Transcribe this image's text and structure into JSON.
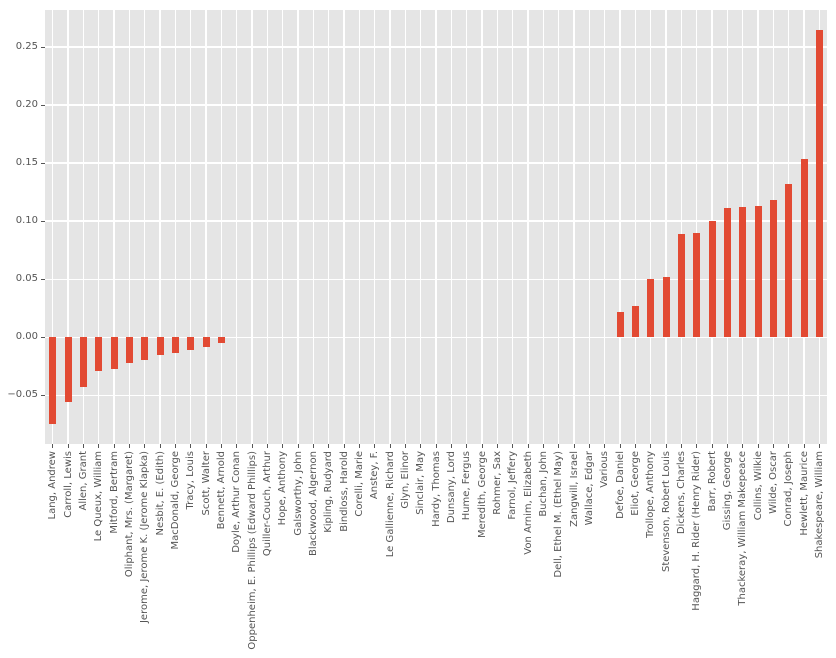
{
  "chart_data": {
    "type": "bar",
    "title": "",
    "xlabel": "",
    "ylabel": "",
    "grid": "on",
    "legend": "none",
    "ylim": [
      -0.092,
      0.282
    ],
    "ytick_values": [
      -0.05,
      0.0,
      0.05,
      0.1,
      0.15,
      0.2,
      0.25
    ],
    "ytick_labels": [
      "−0.05",
      "0.00",
      "0.05",
      "0.10",
      "0.15",
      "0.20",
      "0.25"
    ],
    "categories": [
      "Lang, Andrew",
      "Carroll, Lewis",
      "Allen, Grant",
      "Le Queux, William",
      "Mitford, Bertram",
      "Oliphant, Mrs. (Margaret)",
      "Jerome, Jerome K. (Jerome Klapka)",
      "Nesbit, E. (Edith)",
      "MacDonald, George",
      "Tracy, Louis",
      "Scott, Walter",
      "Bennett, Arnold",
      "Doyle, Arthur Conan",
      "Oppenheim, E. Phillips (Edward Phillips)",
      "Quiller-Couch, Arthur",
      "Hope, Anthony",
      "Galsworthy, John",
      "Blackwood, Algernon",
      "Kipling, Rudyard",
      "Bindloss, Harold",
      "Corelli, Marie",
      "Anstey, F.",
      "Le Gallienne, Richard",
      "Glyn, Elinor",
      "Sinclair, May",
      "Hardy, Thomas",
      "Dunsany, Lord",
      "Hume, Fergus",
      "Meredith, George",
      "Rohmer, Sax",
      "Farnol, Jeffery",
      "Von Arnim, Elizabeth",
      "Buchan, John",
      "Dell, Ethel M. (Ethel May)",
      "Zangwill, Israel",
      "Wallace, Edgar",
      "Various",
      "Defoe, Daniel",
      "Eliot, George",
      "Trollope, Anthony",
      "Stevenson, Robert Louis",
      "Dickens, Charles",
      "Haggard, H. Rider (Henry Rider)",
      "Barr, Robert",
      "Gissing, George",
      "Thackeray, William Makepeace",
      "Collins, Wilkie",
      "Wilde, Oscar",
      "Conrad, Joseph",
      "Hewlett, Maurice",
      "Shakespeare, William"
    ],
    "values": [
      -0.075,
      -0.056,
      -0.043,
      -0.029,
      -0.027,
      -0.022,
      -0.02,
      -0.015,
      -0.014,
      -0.011,
      -0.008,
      -0.005,
      0,
      0,
      0,
      0,
      0,
      0,
      0,
      0,
      0,
      0,
      0,
      0,
      0,
      0,
      0,
      0,
      0,
      0,
      0,
      0,
      0,
      0,
      0,
      0,
      0,
      0.022,
      0.027,
      0.05,
      0.052,
      0.089,
      0.09,
      0.1,
      0.111,
      0.112,
      0.113,
      0.118,
      0.132,
      0.154,
      0.265
    ],
    "style": {
      "bar_color": "#E24A33",
      "plot_background": "#E5E5E5",
      "grid_color": "#FFFFFF",
      "figure_background": "#FFFFFF",
      "tick_color": "#555555",
      "tick_label_color": "#555555"
    }
  }
}
